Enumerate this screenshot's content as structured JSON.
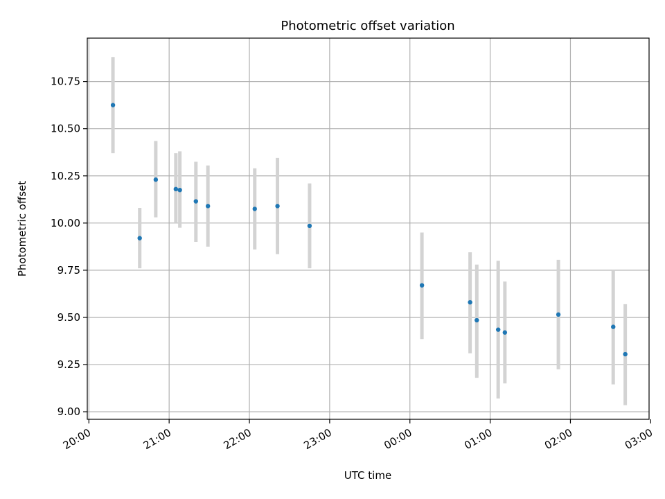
{
  "chart_data": {
    "type": "scatter",
    "title": "Photometric offset variation",
    "xlabel": "UTC time",
    "ylabel": "Photometric offset",
    "x_ticks": [
      "20:00",
      "21:00",
      "22:00",
      "23:00",
      "00:00",
      "01:00",
      "02:00",
      "03:00"
    ],
    "x_range_hours": [
      19.98,
      26.98
    ],
    "y_ticks": [
      "9.00",
      "9.25",
      "9.50",
      "9.75",
      "10.00",
      "10.25",
      "10.50",
      "10.75"
    ],
    "ylim": [
      8.96,
      10.98
    ],
    "grid": true,
    "point_color": "#1f77b4",
    "errorbar_color": "#d3d3d3",
    "points": [
      {
        "time": "20:18",
        "y": 10.625,
        "err_low": 10.37,
        "err_high": 10.88
      },
      {
        "time": "20:38",
        "y": 9.92,
        "err_low": 9.76,
        "err_high": 10.08
      },
      {
        "time": "20:50",
        "y": 10.23,
        "err_low": 10.03,
        "err_high": 10.435
      },
      {
        "time": "21:05",
        "y": 10.18,
        "err_low": 10.0,
        "err_high": 10.37
      },
      {
        "time": "21:08",
        "y": 10.175,
        "err_low": 9.975,
        "err_high": 10.38
      },
      {
        "time": "21:20",
        "y": 10.115,
        "err_low": 9.9,
        "err_high": 10.325
      },
      {
        "time": "21:29",
        "y": 10.09,
        "err_low": 9.875,
        "err_high": 10.305
      },
      {
        "time": "22:04",
        "y": 10.075,
        "err_low": 9.86,
        "err_high": 10.29
      },
      {
        "time": "22:21",
        "y": 10.09,
        "err_low": 9.835,
        "err_high": 10.345
      },
      {
        "time": "22:45",
        "y": 9.985,
        "err_low": 9.76,
        "err_high": 10.21
      },
      {
        "time": "00:09",
        "y": 9.67,
        "err_low": 9.385,
        "err_high": 9.95
      },
      {
        "time": "00:45",
        "y": 9.58,
        "err_low": 9.31,
        "err_high": 9.845
      },
      {
        "time": "00:50",
        "y": 9.485,
        "err_low": 9.18,
        "err_high": 9.78
      },
      {
        "time": "01:06",
        "y": 9.435,
        "err_low": 9.07,
        "err_high": 9.8
      },
      {
        "time": "01:11",
        "y": 9.42,
        "err_low": 9.15,
        "err_high": 9.69
      },
      {
        "time": "01:51",
        "y": 9.515,
        "err_low": 9.225,
        "err_high": 9.805
      },
      {
        "time": "02:32",
        "y": 9.45,
        "err_low": 9.145,
        "err_high": 9.75
      },
      {
        "time": "02:41",
        "y": 9.305,
        "err_low": 9.035,
        "err_high": 9.57
      }
    ]
  }
}
